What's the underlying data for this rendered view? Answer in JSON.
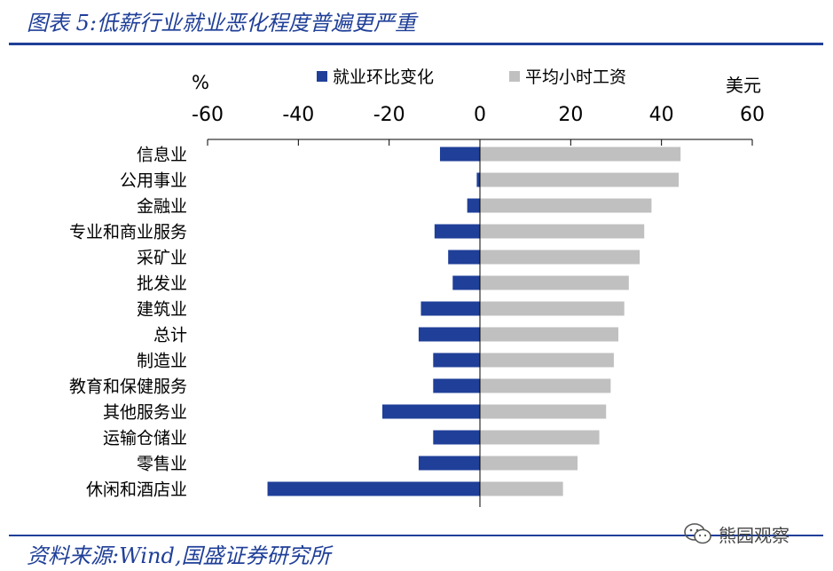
{
  "title": "图表 5:低薪行业就业恶化程度普遍更严重",
  "source": "资料来源:Wind,国盛证券研究所",
  "watermark": {
    "text": "熊园观察",
    "icon": "wechat-icon"
  },
  "colors": {
    "accent": "#1f3f98",
    "employment": "#1f3f98",
    "wage": "#c0c0c0",
    "axis": "#000000"
  },
  "chart_data": {
    "type": "bar",
    "orientation": "horizontal",
    "categories": [
      "信息业",
      "公用事业",
      "金融业",
      "专业和商业服务",
      "采矿业",
      "批发业",
      "建筑业",
      "总计",
      "制造业",
      "教育和保健服务",
      "其他服务业",
      "运输仓储业",
      "零售业",
      "休闲和酒店业"
    ],
    "series": [
      {
        "name": "就业环比变化",
        "axis": "left",
        "unit": "%",
        "values": [
          -8.8,
          -0.7,
          -2.8,
          -10,
          -7,
          -6,
          -13,
          -13.5,
          -10.3,
          -10.3,
          -21.5,
          -10.3,
          -13.5,
          -46.8
        ]
      },
      {
        "name": "平均小时工资",
        "axis": "right",
        "unit": "美元",
        "values": [
          44.2,
          43.8,
          37.8,
          36.2,
          35.2,
          32.8,
          31.8,
          30.5,
          29.5,
          28.8,
          27.8,
          26.3,
          21.5,
          18.3
        ]
      }
    ],
    "x_left_label": "%",
    "x_right_label": "美元",
    "xlim": [
      -60,
      60
    ],
    "xticks": [
      "-60",
      "-40",
      "-20",
      "0",
      "20",
      "40",
      "60"
    ],
    "xtick_values": [
      -60,
      -40,
      -20,
      0,
      20,
      40,
      60
    ],
    "legend_position": "top",
    "grid": false
  }
}
